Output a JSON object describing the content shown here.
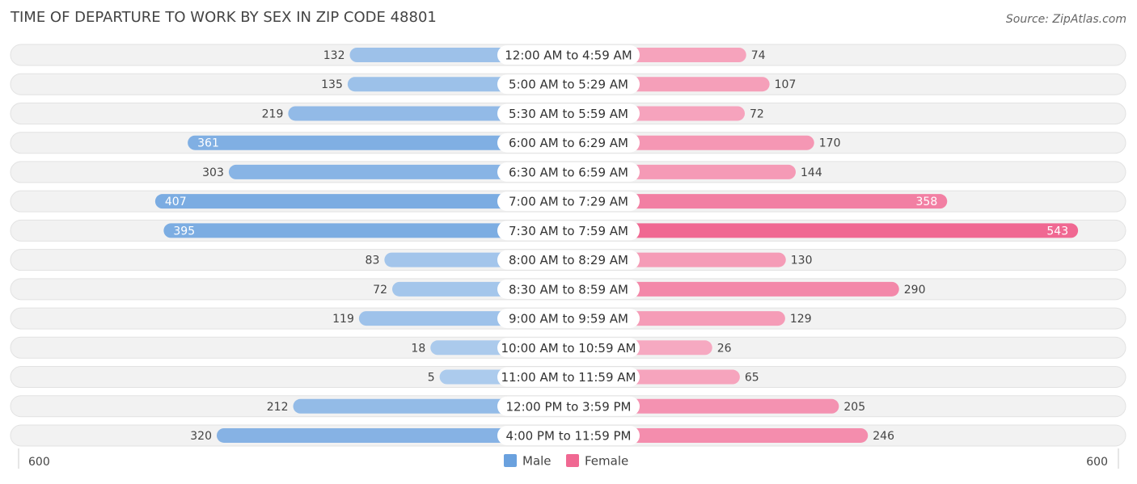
{
  "chart_data": {
    "type": "diverging-bar",
    "title": "TIME OF DEPARTURE TO WORK BY SEX IN ZIP CODE 48801",
    "source": "Source: ZipAtlas.com",
    "categories": [
      "12:00 AM to 4:59 AM",
      "5:00 AM to 5:29 AM",
      "5:30 AM to 5:59 AM",
      "6:00 AM to 6:29 AM",
      "6:30 AM to 6:59 AM",
      "7:00 AM to 7:29 AM",
      "7:30 AM to 7:59 AM",
      "8:00 AM to 8:29 AM",
      "8:30 AM to 8:59 AM",
      "9:00 AM to 9:59 AM",
      "10:00 AM to 10:59 AM",
      "11:00 AM to 11:59 AM",
      "12:00 PM to 3:59 PM",
      "4:00 PM to 11:59 PM"
    ],
    "series": [
      {
        "name": "Male",
        "color": "#6aa1de",
        "values": [
          132,
          135,
          219,
          361,
          303,
          407,
          395,
          83,
          72,
          119,
          18,
          5,
          212,
          320
        ]
      },
      {
        "name": "Female",
        "color": "#f06892",
        "values": [
          74,
          107,
          72,
          170,
          144,
          358,
          543,
          130,
          290,
          129,
          26,
          65,
          205,
          246
        ]
      }
    ],
    "xlim": [
      0,
      600
    ],
    "xticks": [
      600
    ]
  }
}
